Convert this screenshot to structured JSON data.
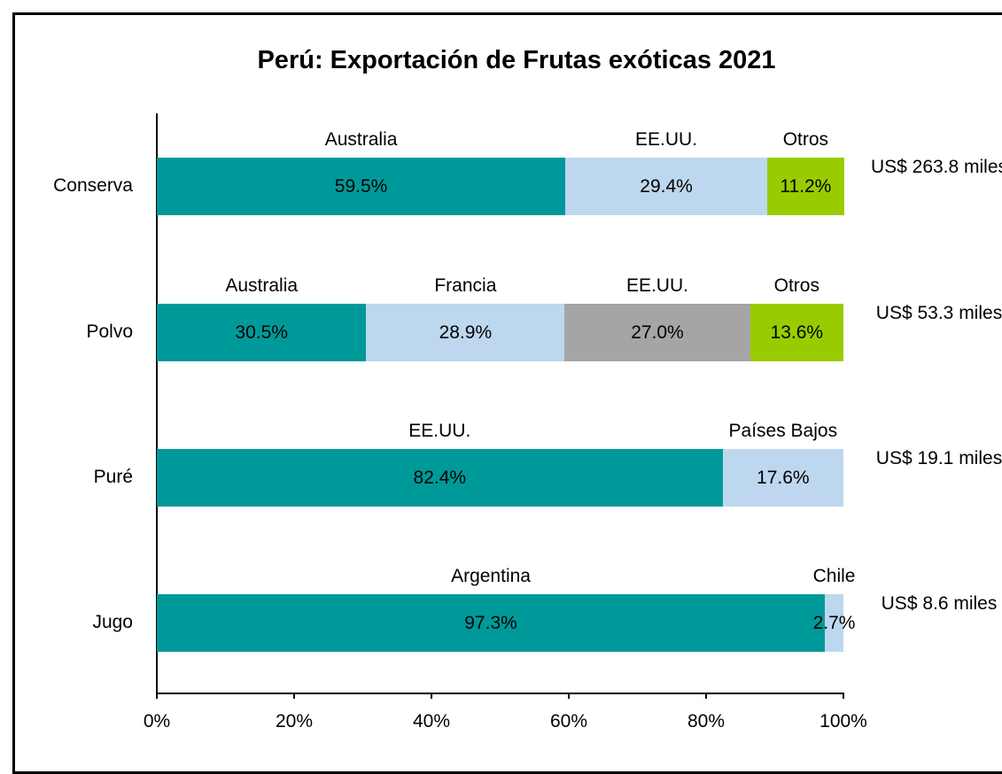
{
  "chart_data": {
    "type": "bar",
    "orientation": "horizontal",
    "stacked": true,
    "title": "Perú: Exportación de Frutas exóticas 2021",
    "categories": [
      "Conserva",
      "Polvo",
      "Puré",
      "Jugo"
    ],
    "rows": [
      {
        "segments": [
          {
            "name": "Australia",
            "color": "#009999",
            "value": 59.5,
            "value_label": "59.5%"
          },
          {
            "name": "EE.UU.",
            "color": "#BDD7EE",
            "value": 29.4,
            "value_label": "29.4%"
          },
          {
            "name": "Otros",
            "color": "#99CC00",
            "value": 11.2,
            "value_label": "11.2%"
          }
        ],
        "total_label": "US$ 263.8 miles"
      },
      {
        "segments": [
          {
            "name": "Australia",
            "color": "#009999",
            "value": 30.5,
            "value_label": "30.5%"
          },
          {
            "name": "Francia",
            "color": "#BDD7EE",
            "value": 28.9,
            "value_label": "28.9%"
          },
          {
            "name": "EE.UU.",
            "color": "#A5A5A5",
            "value": 27.0,
            "value_label": "27.0%"
          },
          {
            "name": "Otros",
            "color": "#99CC00",
            "value": 13.6,
            "value_label": "13.6%"
          }
        ],
        "total_label": "US$ 53.3 miles"
      },
      {
        "segments": [
          {
            "name": "EE.UU.",
            "color": "#009999",
            "value": 82.4,
            "value_label": "82.4%"
          },
          {
            "name": "Países Bajos",
            "color": "#BDD7EE",
            "value": 17.6,
            "value_label": "17.6%"
          }
        ],
        "total_label": "US$ 19.1 miles"
      },
      {
        "segments": [
          {
            "name": "Argentina",
            "color": "#009999",
            "value": 97.3,
            "value_label": "97.3%"
          },
          {
            "name": "Chile",
            "color": "#BDD7EE",
            "value": 2.7,
            "value_label": "2.7%"
          }
        ],
        "total_label": "US$ 8.6 miles"
      }
    ],
    "xlim": [
      0,
      100
    ],
    "xticks": [
      {
        "value": 0,
        "label": "0%"
      },
      {
        "value": 20,
        "label": "20%"
      },
      {
        "value": 40,
        "label": "40%"
      },
      {
        "value": 60,
        "label": "60%"
      },
      {
        "value": 80,
        "label": "80%"
      },
      {
        "value": 100,
        "label": "100%"
      }
    ],
    "grid": false
  }
}
